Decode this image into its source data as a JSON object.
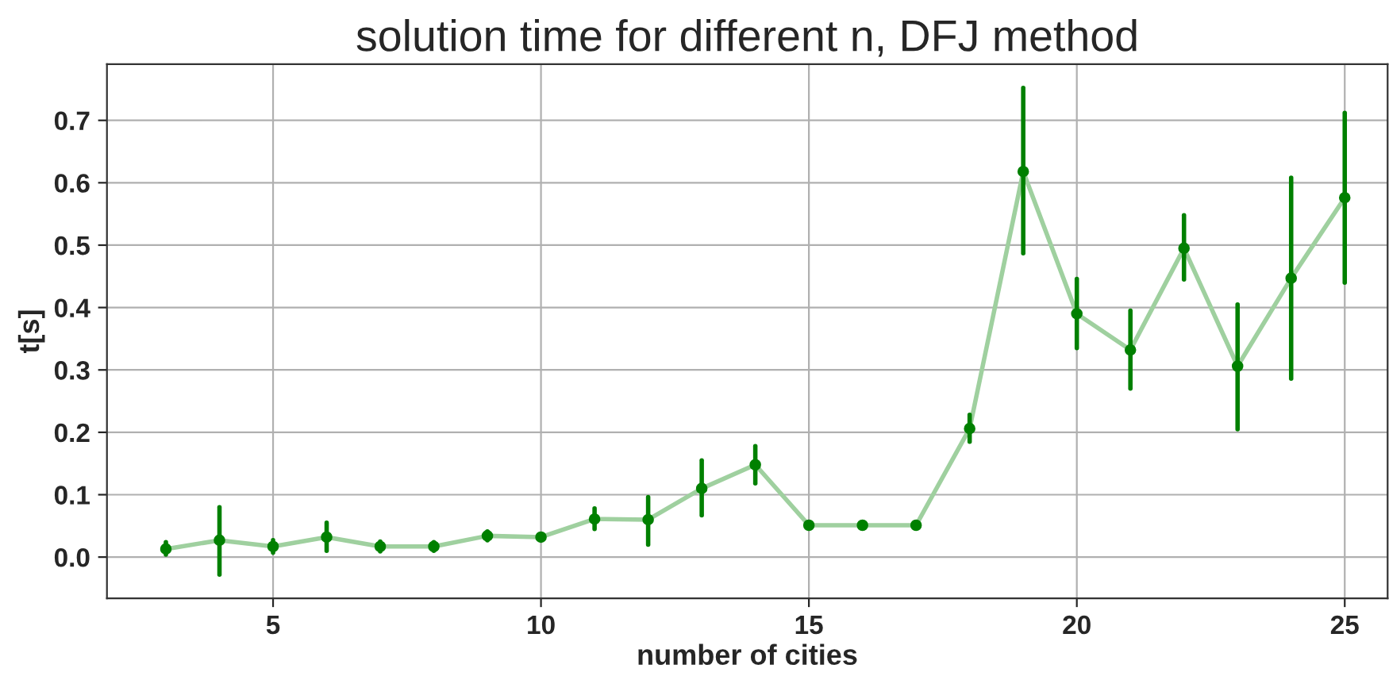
{
  "chart_data": {
    "type": "line",
    "title": "solution time for different n, DFJ method",
    "xlabel": "number of cities",
    "ylabel": "t[s]",
    "x": [
      3,
      4,
      5,
      6,
      7,
      8,
      9,
      10,
      11,
      12,
      13,
      14,
      15,
      16,
      17,
      18,
      19,
      20,
      21,
      22,
      23,
      24,
      25
    ],
    "series": [
      {
        "color": "#9fd09f",
        "marker": "none",
        "values": [
          0.013,
          0.027,
          0.017,
          0.032,
          0.017,
          0.017,
          0.034,
          0.032,
          0.061,
          0.06,
          0.11,
          0.148,
          0.051,
          0.051,
          0.051,
          0.206,
          0.618,
          0.39,
          0.332,
          0.495,
          0.306,
          0.447,
          0.576
        ]
      },
      {
        "type": "scatter",
        "color": "#008000",
        "marker": "circle",
        "values": [
          0.013,
          0.027,
          0.017,
          0.032,
          0.017,
          0.017,
          0.034,
          0.032,
          0.061,
          0.06,
          0.11,
          0.148,
          0.051,
          0.051,
          0.051,
          0.206,
          0.618,
          0.39,
          0.332,
          0.495,
          0.306,
          0.447,
          0.576
        ],
        "errors": [
          [
            0.004,
            0.024
          ],
          [
            -0.028,
            0.08
          ],
          [
            0.007,
            0.027
          ],
          [
            0.01,
            0.055
          ],
          [
            0.009,
            0.025
          ],
          [
            0.01,
            0.024
          ],
          [
            0.027,
            0.041
          ],
          null,
          [
            0.045,
            0.078
          ],
          [
            0.02,
            0.096
          ],
          [
            0.067,
            0.155
          ],
          [
            0.118,
            0.178
          ],
          null,
          null,
          null,
          [
            0.185,
            0.228
          ],
          [
            0.487,
            0.752
          ],
          [
            0.335,
            0.446
          ],
          [
            0.27,
            0.395
          ],
          [
            0.445,
            0.548
          ],
          [
            0.205,
            0.405
          ],
          [
            0.286,
            0.608
          ],
          [
            0.44,
            0.712
          ]
        ]
      }
    ],
    "xlim": [
      1.9,
      25.8
    ],
    "xticks": [
      5,
      10,
      15,
      20,
      25
    ],
    "ylim": [
      -0.066,
      0.79
    ],
    "yticks": [
      {
        "value": 0,
        "label": "0.0"
      },
      0.1,
      0.2,
      0.3,
      0.4,
      0.5,
      0.6,
      0.7
    ],
    "grid": true
  }
}
